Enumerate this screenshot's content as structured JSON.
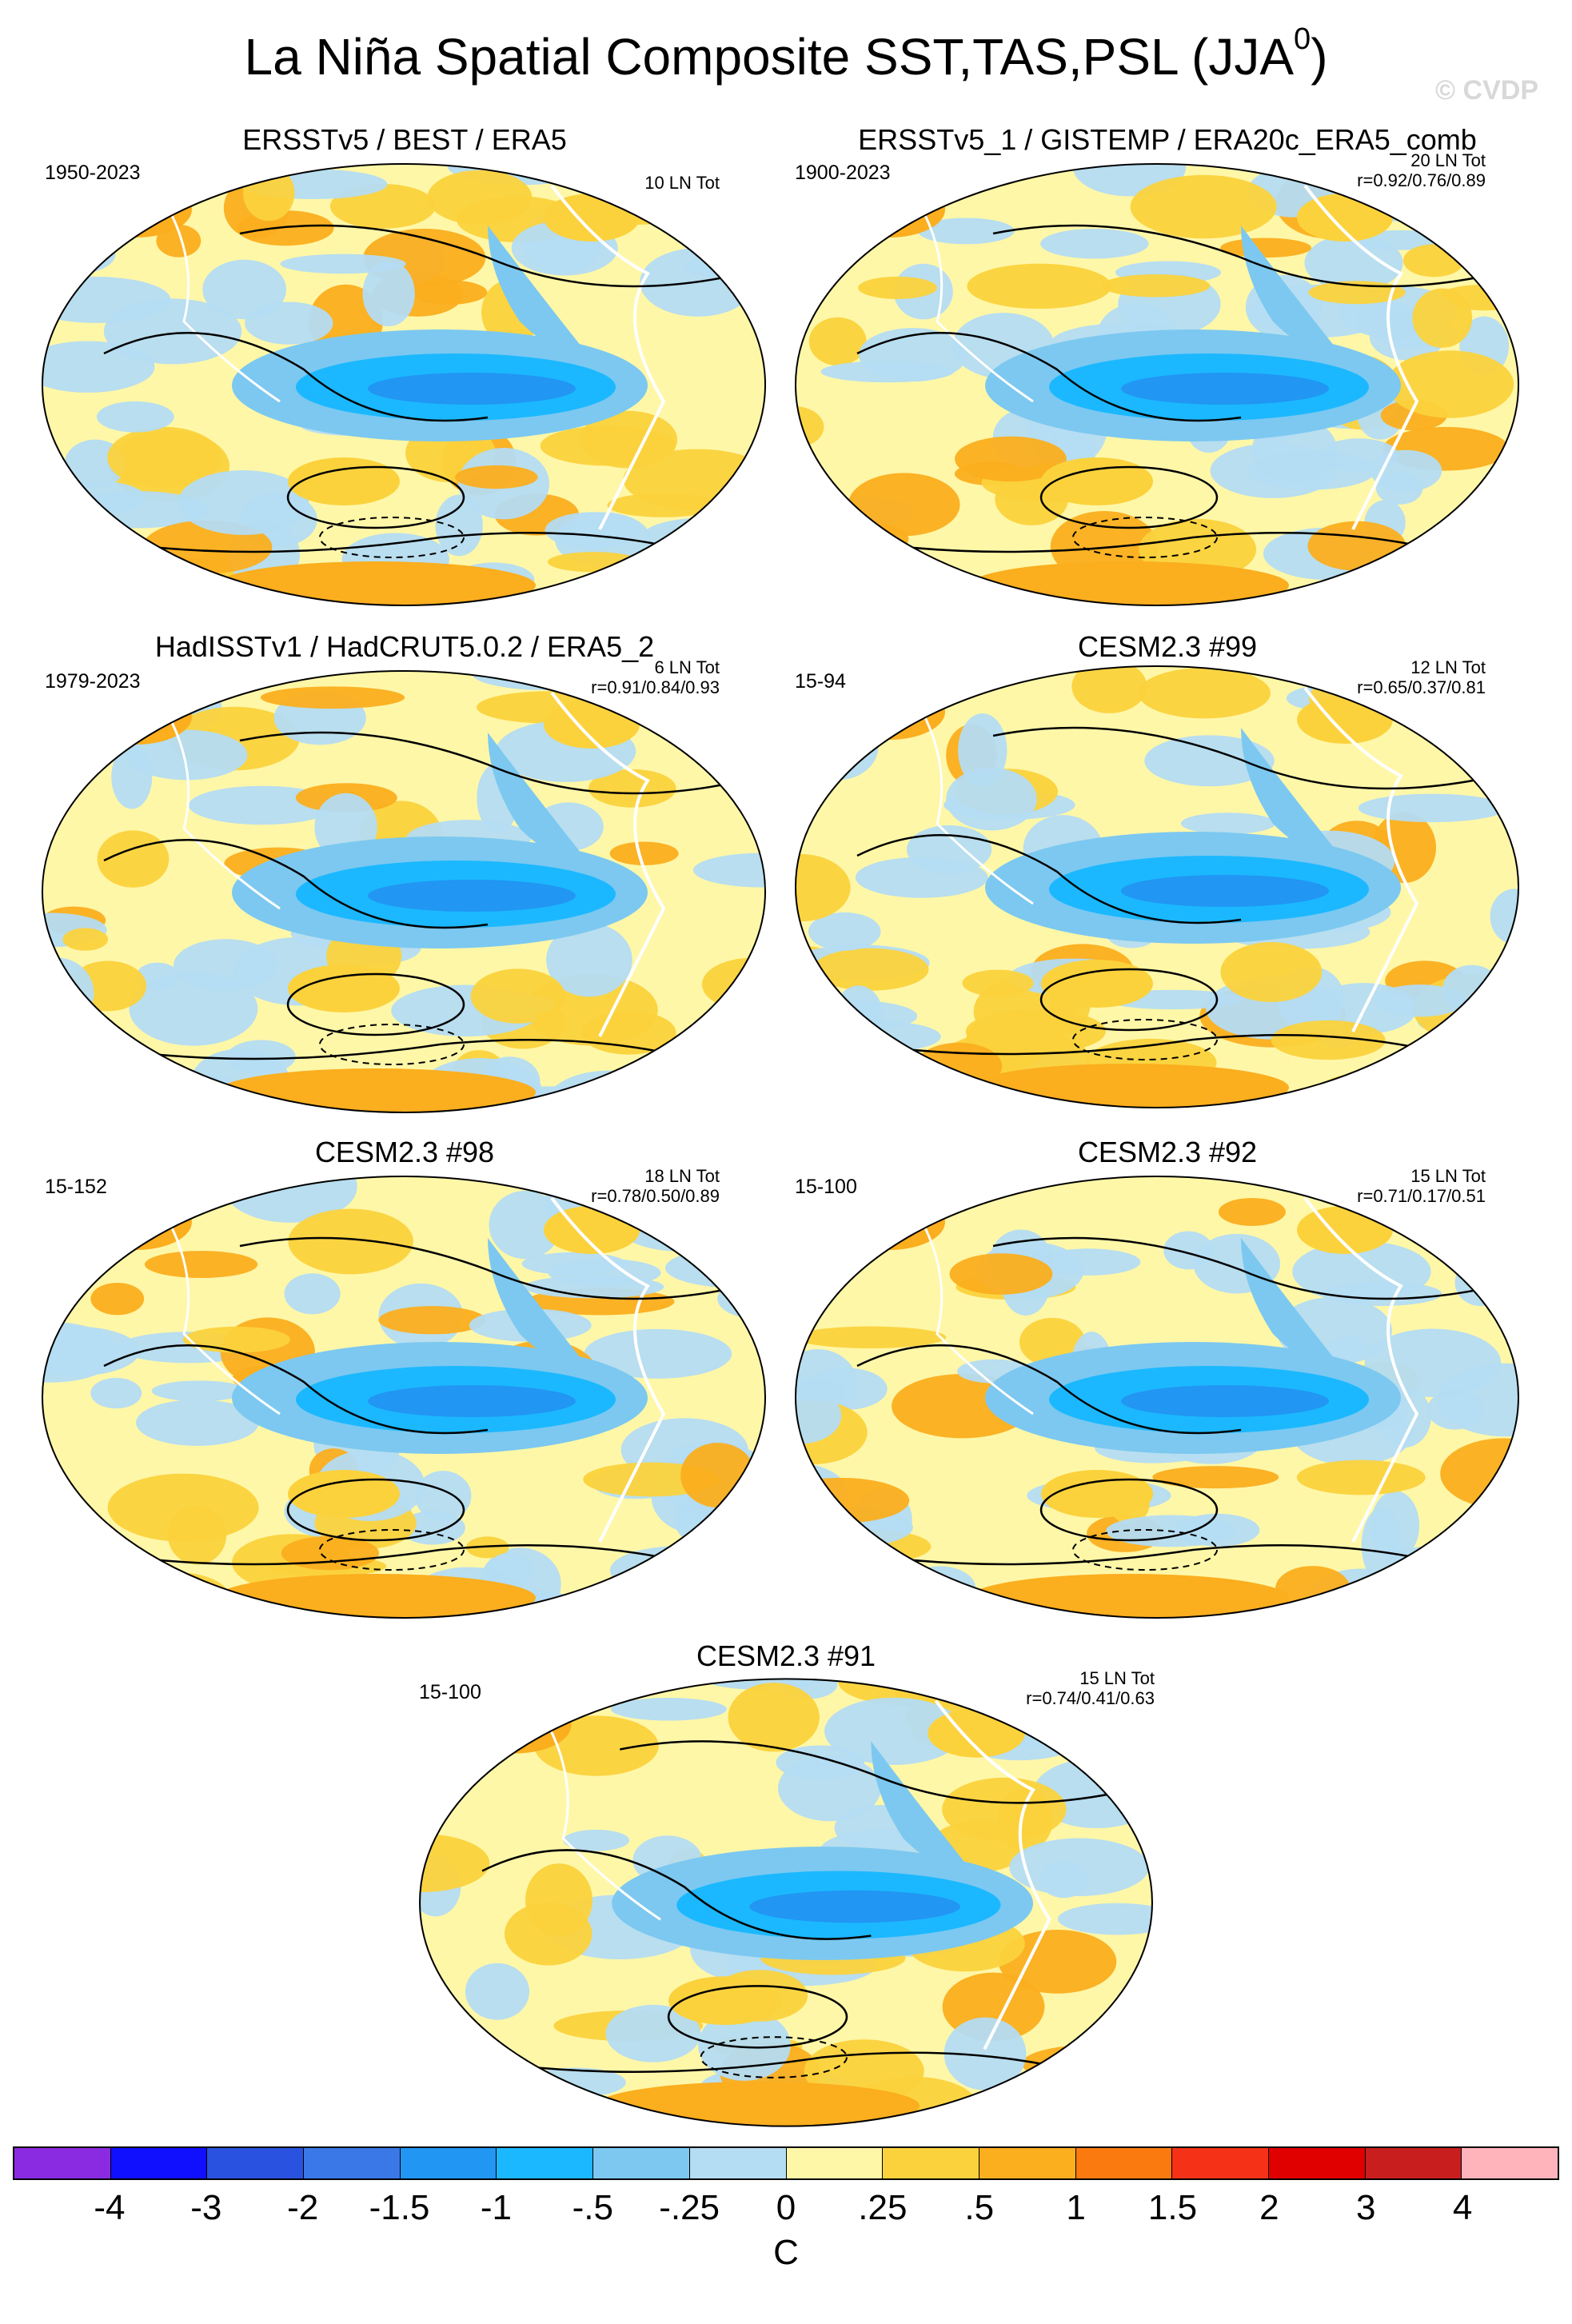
{
  "title": {
    "main": "La Niña Spatial Composite SST,TAS,PSL (JJA",
    "sup": "0",
    "close": ")"
  },
  "watermark": "© CVDP",
  "panels": [
    {
      "id": "p1",
      "title": "ERSSTv5 / BEST / ERA5",
      "years": "1950-2023",
      "count": "10 LN Tot",
      "r": ""
    },
    {
      "id": "p2",
      "title": "ERSSTv5_1 / GISTEMP / ERA20c_ERA5_comb",
      "years": "1900-2023",
      "count": "20 LN Tot",
      "r": "r=0.92/0.76/0.89"
    },
    {
      "id": "p3",
      "title": "HadISSTv1 / HadCRUT5.0.2 / ERA5_2",
      "years": "1979-2023",
      "count": "6 LN Tot",
      "r": "r=0.91/0.84/0.93"
    },
    {
      "id": "p4",
      "title": "CESM2.3 #99",
      "years": "15-94",
      "count": "12 LN Tot",
      "r": "r=0.65/0.37/0.81"
    },
    {
      "id": "p5",
      "title": "CESM2.3 #98",
      "years": "15-152",
      "count": "18 LN Tot",
      "r": "r=0.78/0.50/0.89"
    },
    {
      "id": "p6",
      "title": "CESM2.3 #92",
      "years": "15-100",
      "count": "15 LN Tot",
      "r": "r=0.71/0.17/0.51"
    },
    {
      "id": "p7",
      "title": "CESM2.3 #91",
      "years": "15-100",
      "count": "15 LN Tot",
      "r": "r=0.74/0.41/0.63"
    }
  ],
  "colorbar": {
    "colors": [
      "#8a2be2",
      "#1010ff",
      "#2a52e0",
      "#3a78e8",
      "#2196f3",
      "#1bb8ff",
      "#7cc8f0",
      "#b4dcf2",
      "#fff7a8",
      "#fbd23c",
      "#fbae1e",
      "#fa7a10",
      "#f53218",
      "#e00000",
      "#c81e1e",
      "#ffb4bc"
    ],
    "ticks": [
      "-4",
      "-3",
      "-2",
      "-1.5",
      "-1",
      "-.5",
      "-.25",
      "0",
      ".25",
      ".5",
      "1",
      "1.5",
      "2",
      "3",
      "4"
    ],
    "unit": "C"
  }
}
